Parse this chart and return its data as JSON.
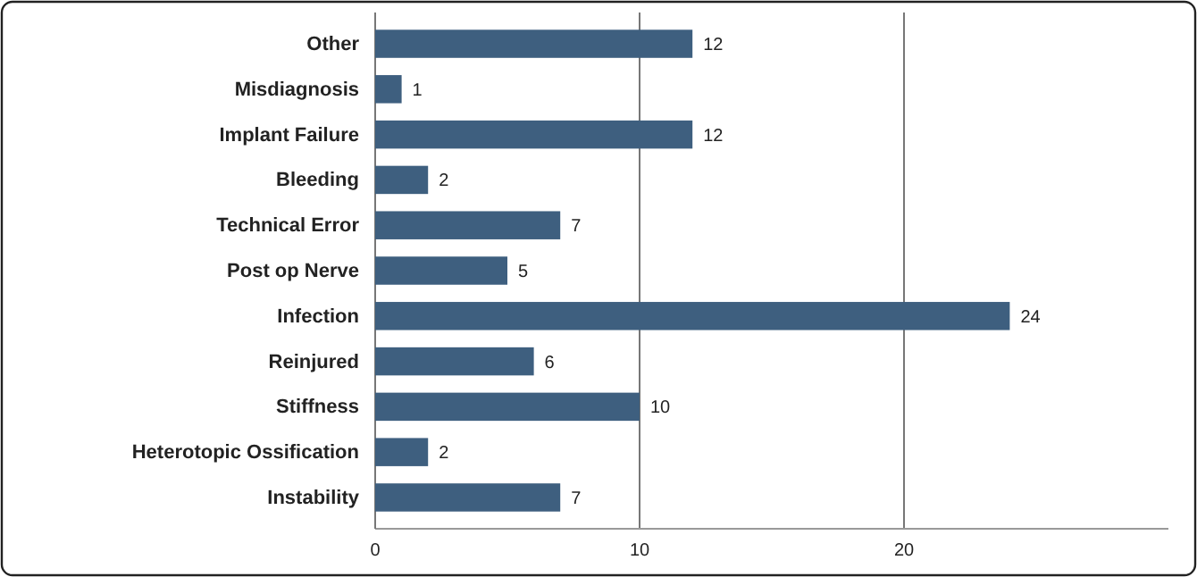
{
  "chart_data": {
    "type": "bar",
    "orientation": "horizontal",
    "categories": [
      "Other",
      "Misdiagnosis",
      "Implant Failure",
      "Bleeding",
      "Technical Error",
      "Post op Nerve",
      "Infection",
      "Reinjured",
      "Stiffness",
      "Heterotopic Ossification",
      "Instability"
    ],
    "values": [
      12,
      1,
      12,
      2,
      7,
      5,
      24,
      6,
      10,
      2,
      7
    ],
    "color": "#3e5f7f",
    "xlim": [
      0,
      30
    ],
    "xticks": [
      0,
      10,
      20
    ],
    "grid": "x",
    "data_labels": true
  }
}
